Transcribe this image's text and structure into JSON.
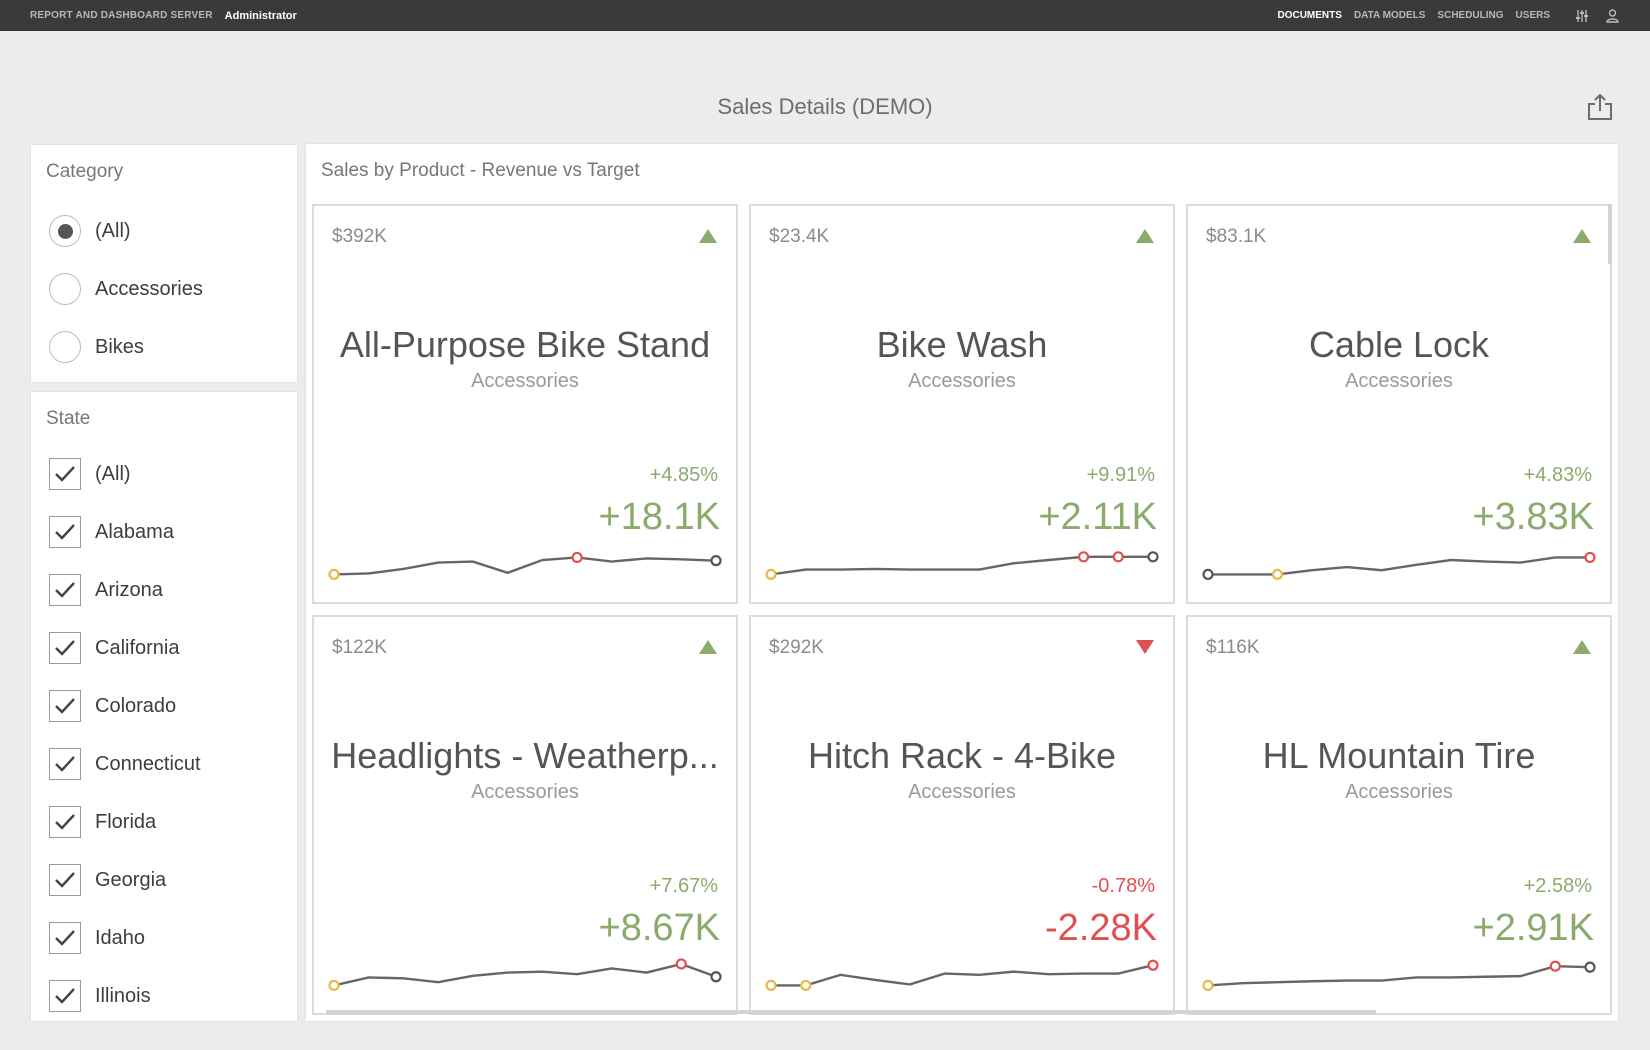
{
  "topbar": {
    "app_title": "REPORT AND DASHBOARD SERVER",
    "user": "Administrator",
    "nav": [
      "DOCUMENTS",
      "DATA MODELS",
      "SCHEDULING",
      "USERS"
    ],
    "active_nav": "DOCUMENTS",
    "icons": [
      "settings-sliders-icon",
      "user-icon"
    ]
  },
  "dashboard": {
    "title": "Sales Details (DEMO)",
    "export_icon": "export-icon"
  },
  "category_filter": {
    "title": "Category",
    "options": [
      {
        "label": "(All)",
        "checked": true
      },
      {
        "label": "Accessories",
        "checked": false
      },
      {
        "label": "Bikes",
        "checked": false
      }
    ]
  },
  "state_filter": {
    "title": "State",
    "options": [
      {
        "label": "(All)",
        "checked": true
      },
      {
        "label": "Alabama",
        "checked": true
      },
      {
        "label": "Arizona",
        "checked": true
      },
      {
        "label": "California",
        "checked": true
      },
      {
        "label": "Colorado",
        "checked": true
      },
      {
        "label": "Connecticut",
        "checked": true
      },
      {
        "label": "Florida",
        "checked": true
      },
      {
        "label": "Georgia",
        "checked": true
      },
      {
        "label": "Idaho",
        "checked": true
      },
      {
        "label": "Illinois",
        "checked": true
      }
    ]
  },
  "cards_section": {
    "title": "Sales by Product - Revenue vs Target",
    "cards": [
      {
        "amount": "$392K",
        "trend": "up",
        "name": "All-Purpose Bike Stand",
        "category": "Accessories",
        "percent": "+4.85%",
        "delta": "+18.1K",
        "spark": [
          0.05,
          0.08,
          0.22,
          0.42,
          0.45,
          0.1,
          0.5,
          0.58,
          0.45,
          0.55,
          0.52,
          0.48
        ],
        "spark_markers": {
          "0": "start",
          "7": "high",
          "11": "end"
        }
      },
      {
        "amount": "$23.4K",
        "trend": "up",
        "name": "Bike Wash",
        "category": "Accessories",
        "percent": "+9.91%",
        "delta": "+2.11K",
        "spark": [
          0.05,
          0.2,
          0.2,
          0.22,
          0.2,
          0.2,
          0.2,
          0.4,
          0.5,
          0.6,
          0.6,
          0.6
        ],
        "spark_markers": {
          "0": "start",
          "9": "high",
          "10": "high",
          "11": "end"
        }
      },
      {
        "amount": "$83.1K",
        "trend": "up",
        "name": "Cable Lock",
        "category": "Accessories",
        "percent": "+4.83%",
        "delta": "+3.83K",
        "spark": [
          0.05,
          0.05,
          0.05,
          0.18,
          0.28,
          0.18,
          0.35,
          0.5,
          0.45,
          0.42,
          0.58,
          0.58
        ],
        "spark_markers": {
          "0": "end",
          "2": "start",
          "11": "high"
        }
      },
      {
        "amount": "$122K",
        "trend": "up",
        "name": "Headlights - Weatherp...",
        "category": "Accessories",
        "percent": "+7.67%",
        "delta": "+8.67K",
        "spark": [
          0.05,
          0.3,
          0.27,
          0.15,
          0.35,
          0.45,
          0.48,
          0.4,
          0.58,
          0.45,
          0.72,
          0.32
        ],
        "spark_markers": {
          "0": "start",
          "10": "high",
          "11": "end"
        }
      },
      {
        "amount": "$292K",
        "trend": "down",
        "name": "Hitch Rack - 4-Bike",
        "category": "Accessories",
        "percent": "-0.78%",
        "delta": "-2.28K",
        "spark": [
          0.05,
          0.05,
          0.38,
          0.22,
          0.08,
          0.42,
          0.38,
          0.48,
          0.4,
          0.42,
          0.42,
          0.68
        ],
        "spark_markers": {
          "0": "start",
          "1": "start",
          "11": "high"
        }
      },
      {
        "amount": "$116K",
        "trend": "up",
        "name": "HL Mountain Tire",
        "category": "Accessories",
        "percent": "+2.58%",
        "delta": "+2.91K",
        "spark": [
          0.05,
          0.12,
          0.15,
          0.18,
          0.2,
          0.2,
          0.3,
          0.3,
          0.32,
          0.34,
          0.65,
          0.62
        ],
        "spark_markers": {
          "0": "start",
          "10": "high",
          "11": "end"
        }
      }
    ]
  },
  "colors": {
    "up": "#8aab6b",
    "down": "#e05050",
    "marker_start": "#e8b94a",
    "marker_high": "#e05050",
    "marker_end": "#555555"
  }
}
